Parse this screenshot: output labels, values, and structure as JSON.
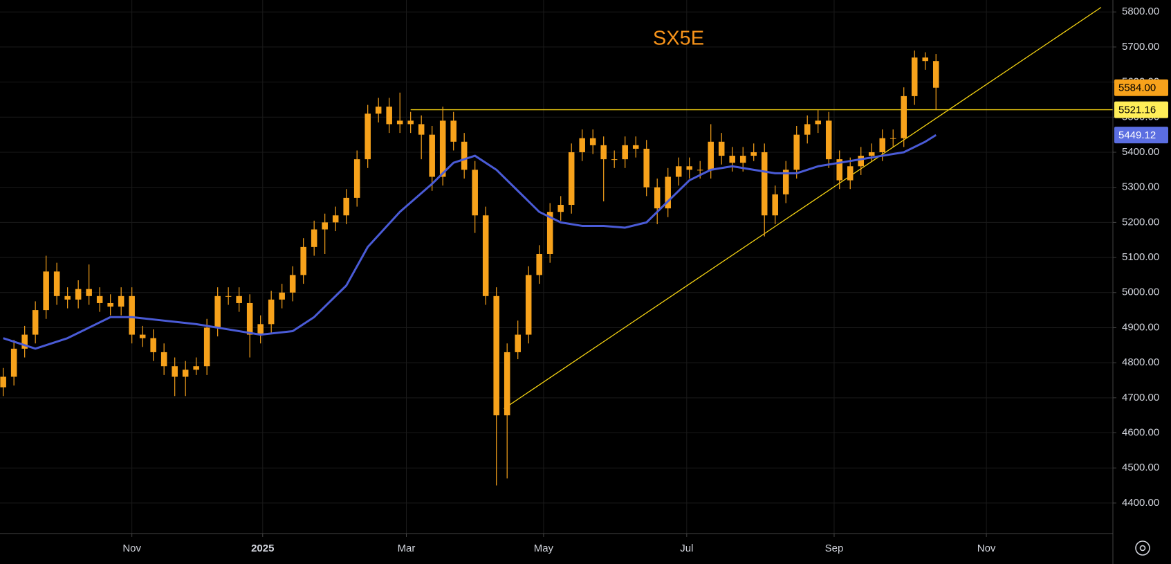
{
  "chart_data": {
    "type": "candlestick",
    "title": "SX5E",
    "title_color": "#f7931a",
    "background": "#000000",
    "grid": true,
    "grid_color": "#1a1a1a",
    "xlim": [
      -0.3,
      103.5
    ],
    "ylim": [
      4313,
      5834
    ],
    "yticks": [
      {
        "value": 4400,
        "label": "4400.00"
      },
      {
        "value": 4500,
        "label": "4500.00"
      },
      {
        "value": 4600,
        "label": "4600.00"
      },
      {
        "value": 4700,
        "label": "4700.00"
      },
      {
        "value": 4800,
        "label": "4800.00"
      },
      {
        "value": 4900,
        "label": "4900.00"
      },
      {
        "value": 5000,
        "label": "5000.00"
      },
      {
        "value": 5100,
        "label": "5100.00"
      },
      {
        "value": 5200,
        "label": "5200.00"
      },
      {
        "value": 5300,
        "label": "5300.00"
      },
      {
        "value": 5400,
        "label": "5400.00"
      },
      {
        "value": 5500,
        "label": "5500.00"
      },
      {
        "value": 5600,
        "label": "5600.00"
      },
      {
        "value": 5700,
        "label": "5700.00"
      },
      {
        "value": 5800,
        "label": "5800.00"
      }
    ],
    "xticks": [
      {
        "value": 12.0,
        "label": "Nov"
      },
      {
        "value": 24.2,
        "label": "2025"
      },
      {
        "value": 37.6,
        "label": "Mar"
      },
      {
        "value": 50.4,
        "label": "May"
      },
      {
        "value": 63.75,
        "label": "Jul"
      },
      {
        "value": 77.5,
        "label": "Sep"
      },
      {
        "value": 91.7,
        "label": "Nov"
      }
    ],
    "series": [
      {
        "type": "candlestick",
        "color": "#f7a21b",
        "values": [
          [
            4730,
            4785,
            4705,
            4760
          ],
          [
            4760,
            4865,
            4735,
            4840
          ],
          [
            4840,
            4905,
            4815,
            4880
          ],
          [
            4880,
            4975,
            4855,
            4950
          ],
          [
            4950,
            5105,
            4925,
            5060
          ],
          [
            5060,
            5085,
            4965,
            4990
          ],
          [
            4990,
            5015,
            4955,
            4980
          ],
          [
            4980,
            5035,
            4955,
            5010
          ],
          [
            5010,
            5080,
            4965,
            4990
          ],
          [
            4990,
            5015,
            4945,
            4970
          ],
          [
            4970,
            4995,
            4935,
            4960
          ],
          [
            4960,
            5015,
            4935,
            4990
          ],
          [
            4990,
            5015,
            4855,
            4880
          ],
          [
            4880,
            4905,
            4845,
            4870
          ],
          [
            4870,
            4895,
            4805,
            4830
          ],
          [
            4830,
            4855,
            4765,
            4790
          ],
          [
            4790,
            4815,
            4705,
            4760
          ],
          [
            4760,
            4805,
            4705,
            4780
          ],
          [
            4780,
            4815,
            4765,
            4790
          ],
          [
            4790,
            4925,
            4765,
            4900
          ],
          [
            4900,
            5015,
            4875,
            4990
          ],
          [
            4990,
            5015,
            4965,
            4990
          ],
          [
            4990,
            5015,
            4945,
            4970
          ],
          [
            4970,
            4995,
            4815,
            4880
          ],
          [
            4880,
            4935,
            4855,
            4910
          ],
          [
            4910,
            5005,
            4885,
            4980
          ],
          [
            4980,
            5025,
            4955,
            5000
          ],
          [
            5000,
            5075,
            4975,
            5050
          ],
          [
            5050,
            5155,
            5025,
            5130
          ],
          [
            5130,
            5205,
            5105,
            5180
          ],
          [
            5180,
            5225,
            5110,
            5200
          ],
          [
            5200,
            5245,
            5175,
            5220
          ],
          [
            5220,
            5295,
            5195,
            5270
          ],
          [
            5270,
            5405,
            5245,
            5380
          ],
          [
            5380,
            5535,
            5355,
            5510
          ],
          [
            5510,
            5555,
            5485,
            5530
          ],
          [
            5530,
            5555,
            5455,
            5480
          ],
          [
            5480,
            5570,
            5455,
            5490
          ],
          [
            5490,
            5515,
            5455,
            5480
          ],
          [
            5480,
            5505,
            5380,
            5450
          ],
          [
            5450,
            5475,
            5290,
            5330
          ],
          [
            5330,
            5530,
            5305,
            5490
          ],
          [
            5490,
            5515,
            5405,
            5430
          ],
          [
            5430,
            5455,
            5325,
            5350
          ],
          [
            5350,
            5375,
            5170,
            5220
          ],
          [
            5220,
            5245,
            4965,
            4990
          ],
          [
            4990,
            5015,
            4450,
            4650
          ],
          [
            4650,
            4855,
            4470,
            4830
          ],
          [
            4830,
            4920,
            4810,
            4880
          ],
          [
            4880,
            5075,
            4855,
            5050
          ],
          [
            5050,
            5135,
            5025,
            5110
          ],
          [
            5110,
            5255,
            5085,
            5230
          ],
          [
            5230,
            5275,
            5205,
            5250
          ],
          [
            5250,
            5425,
            5225,
            5400
          ],
          [
            5400,
            5465,
            5375,
            5440
          ],
          [
            5440,
            5465,
            5395,
            5420
          ],
          [
            5420,
            5445,
            5260,
            5380
          ],
          [
            5380,
            5405,
            5355,
            5380
          ],
          [
            5380,
            5445,
            5355,
            5420
          ],
          [
            5420,
            5445,
            5385,
            5410
          ],
          [
            5410,
            5435,
            5275,
            5300
          ],
          [
            5300,
            5325,
            5195,
            5240
          ],
          [
            5240,
            5355,
            5215,
            5330
          ],
          [
            5330,
            5385,
            5305,
            5360
          ],
          [
            5360,
            5385,
            5325,
            5350
          ],
          [
            5350,
            5375,
            5325,
            5350
          ],
          [
            5350,
            5480,
            5325,
            5430
          ],
          [
            5430,
            5455,
            5365,
            5390
          ],
          [
            5390,
            5415,
            5345,
            5370
          ],
          [
            5370,
            5415,
            5345,
            5390
          ],
          [
            5390,
            5425,
            5375,
            5400
          ],
          [
            5400,
            5425,
            5160,
            5220
          ],
          [
            5220,
            5305,
            5195,
            5280
          ],
          [
            5280,
            5375,
            5255,
            5350
          ],
          [
            5350,
            5475,
            5325,
            5450
          ],
          [
            5450,
            5505,
            5425,
            5480
          ],
          [
            5480,
            5520,
            5455,
            5490
          ],
          [
            5490,
            5515,
            5355,
            5380
          ],
          [
            5380,
            5405,
            5295,
            5320
          ],
          [
            5320,
            5385,
            5295,
            5360
          ],
          [
            5360,
            5415,
            5335,
            5390
          ],
          [
            5390,
            5425,
            5375,
            5400
          ],
          [
            5400,
            5465,
            5375,
            5440
          ],
          [
            5440,
            5465,
            5415,
            5440
          ],
          [
            5440,
            5585,
            5415,
            5560
          ],
          [
            5560,
            5690,
            5535,
            5670
          ],
          [
            5670,
            5685,
            5635,
            5660
          ],
          [
            5660,
            5680,
            5520,
            5584
          ]
        ]
      },
      {
        "type": "line",
        "color": "#4a5bd6",
        "x": [
          0,
          3,
          6,
          8,
          10,
          12,
          15,
          18,
          20,
          24,
          27,
          29,
          32,
          34,
          37,
          40,
          42,
          44,
          46,
          48,
          50,
          52,
          54,
          56,
          58,
          60,
          62,
          64,
          66,
          68,
          70,
          72,
          74,
          76,
          78,
          80,
          82,
          84,
          86,
          87
        ],
        "values": [
          4870,
          4840,
          4870,
          4900,
          4930,
          4930,
          4920,
          4910,
          4900,
          4880,
          4890,
          4930,
          5020,
          5130,
          5230,
          5310,
          5370,
          5390,
          5350,
          5290,
          5230,
          5200,
          5190,
          5190,
          5185,
          5200,
          5260,
          5320,
          5350,
          5360,
          5350,
          5340,
          5340,
          5360,
          5370,
          5380,
          5390,
          5400,
          5430,
          5449.12
        ]
      }
    ],
    "trendlines": [
      {
        "color": "#f5d312",
        "x": [
          46.7,
          102.4
        ],
        "values": [
          4669,
          5813
        ]
      },
      {
        "color": "#f5d312",
        "x": [
          38,
          103.5
        ],
        "values": [
          5521.16,
          5521.16
        ]
      }
    ],
    "price_labels": [
      {
        "value": 5584,
        "label": "5584.00",
        "color": "#f7a21b",
        "text_color": "#000000"
      },
      {
        "value": 5521.16,
        "label": "5521.16",
        "color": "#ffee58",
        "text_color": "#000000"
      },
      {
        "value": 5449.12,
        "label": "5449.12",
        "color": "#5b6ee1",
        "text_color": "#ffffff"
      }
    ]
  }
}
